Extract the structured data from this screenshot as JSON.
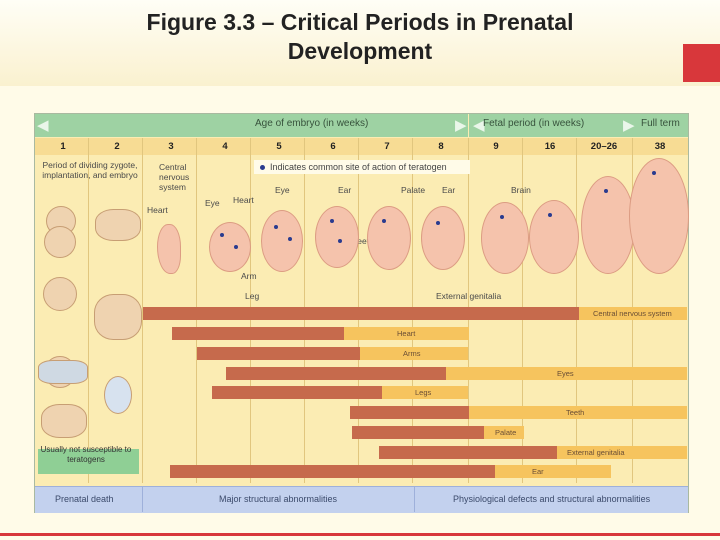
{
  "title_line1": "Figure 3.3 – Critical Periods in Prenatal",
  "title_line2": "Development",
  "header": {
    "embryo_age": "Age of embryo (in weeks)",
    "fetal_period": "Fetal period (in weeks)",
    "full_term": "Full term"
  },
  "weeks": [
    "1",
    "2",
    "3",
    "4",
    "5",
    "6",
    "7",
    "8",
    "9",
    "16",
    "20–26",
    "38"
  ],
  "legend": "Indicates common site of action of teratogen",
  "labels": {
    "period_dividing": "Period of dividing zygote, implantation, and embryo",
    "cns": "Central nervous system",
    "heart1": "Heart",
    "eye1": "Eye",
    "heart2": "Heart",
    "eye2": "Eye",
    "ear1": "Ear",
    "palate": "Palate",
    "ear2": "Ear",
    "brain": "Brain",
    "teeth": "Teeth",
    "arm": "Arm",
    "leg": "Leg",
    "ext_gen": "External genitalia",
    "not_susceptible": "Usually not susceptible to teratogens"
  },
  "bars": [
    {
      "label": "Central nervous system"
    },
    {
      "label": "Heart"
    },
    {
      "label": "Arms"
    },
    {
      "label": "Eyes"
    },
    {
      "label": "Legs"
    },
    {
      "label": "Teeth"
    },
    {
      "label": "Palate"
    },
    {
      "label": "External genitalia"
    },
    {
      "label": "Ear"
    }
  ],
  "footer": {
    "prenatal_death": "Prenatal death",
    "major": "Major structural abnormalities",
    "physio": "Physiological defects and structural abnormalities"
  },
  "colors": {
    "sensitive": "#c66a4c",
    "less_sensitive": "#f6c45e",
    "header": "#9ed2a3",
    "footer": "#c3d1ee"
  }
}
